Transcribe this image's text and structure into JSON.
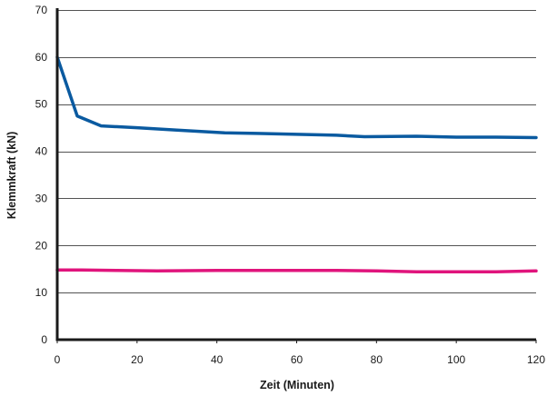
{
  "chart_data": {
    "type": "line",
    "title": "",
    "xlabel": "Zeit (Minuten)",
    "ylabel": "Klemmkraft (kN)",
    "xlim": [
      0,
      120
    ],
    "ylim": [
      0,
      70
    ],
    "xticks": [
      0,
      20,
      40,
      60,
      80,
      100,
      120
    ],
    "yticks": [
      0,
      10,
      20,
      30,
      40,
      50,
      60,
      70
    ],
    "grid": "horizontal",
    "legend": "none",
    "series": [
      {
        "color": "#0a5aa0",
        "x": [
          0,
          5,
          11,
          20,
          30,
          42,
          50,
          60,
          70,
          77,
          90,
          100,
          110,
          120
        ],
        "y": [
          60,
          47.5,
          45.4,
          45,
          44.5,
          43.9,
          43.8,
          43.6,
          43.4,
          43.1,
          43.2,
          43,
          43,
          42.9
        ]
      },
      {
        "color": "#e0147c",
        "x": [
          0,
          6,
          15,
          25,
          40,
          55,
          70,
          80,
          90,
          100,
          110,
          120
        ],
        "y": [
          14.8,
          14.8,
          14.7,
          14.6,
          14.7,
          14.7,
          14.7,
          14.6,
          14.4,
          14.4,
          14.4,
          14.6
        ]
      }
    ]
  }
}
